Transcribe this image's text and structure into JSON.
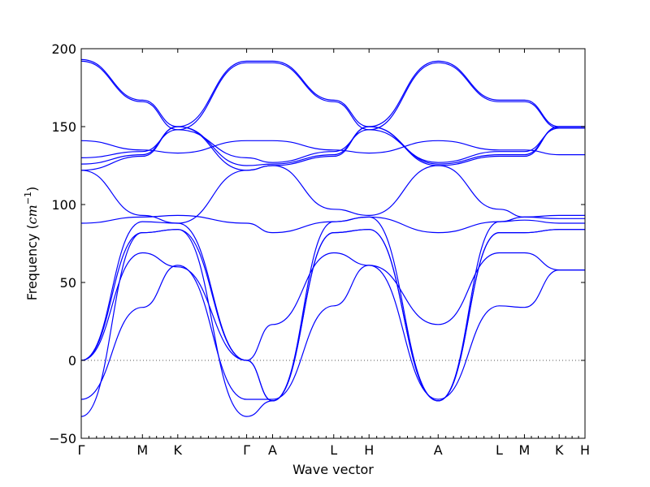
{
  "chart_data": {
    "type": "line",
    "title": "",
    "xlabel": "Wave vector",
    "ylabel": "Frequency",
    "ylabel_unit": "cm",
    "ylabel_unit_exponent": "−1",
    "ylim": [
      -50,
      200
    ],
    "yticks": [
      -50,
      0,
      50,
      100,
      150,
      200
    ],
    "xticks": [
      "Γ",
      "M",
      "K",
      "Γ",
      "A",
      "L",
      "H",
      "A",
      "L",
      "M",
      "K",
      "H"
    ],
    "x": [
      0,
      0.2571,
      0.4057,
      0.6952,
      0.8043,
      1.0613,
      1.2097,
      1.5002,
      1.7571,
      1.8628,
      2.0089,
      2.1174
    ],
    "zero_line": true,
    "colors": {
      "bands": "#0000ff",
      "zero_line": "#555555"
    },
    "series": [
      {
        "values": [
          193,
          167,
          150,
          192,
          192,
          167,
          150,
          192,
          167,
          167,
          150,
          150
        ]
      },
      {
        "values": [
          192,
          166,
          148,
          191,
          191,
          166,
          148,
          191,
          166,
          166,
          149,
          149
        ]
      },
      {
        "values": [
          141,
          135,
          133,
          141,
          141,
          135,
          133,
          141,
          135,
          135,
          132,
          132
        ]
      },
      {
        "values": [
          130,
          134,
          148,
          130,
          127,
          134,
          148,
          127,
          134,
          134,
          149,
          149
        ]
      },
      {
        "values": [
          126,
          132,
          150,
          125,
          126,
          132,
          150,
          126,
          132,
          132,
          150,
          150
        ]
      },
      {
        "values": [
          122,
          131,
          150,
          122,
          125,
          131,
          150,
          125,
          131,
          131,
          150,
          150
        ]
      },
      {
        "values": [
          122,
          93,
          88,
          122,
          125,
          97,
          93,
          125,
          97,
          92,
          91,
          91
        ]
      },
      {
        "values": [
          88,
          92,
          93,
          88,
          82,
          89,
          92,
          82,
          89,
          92,
          93,
          93
        ]
      },
      {
        "values": [
          0,
          89,
          88,
          0,
          -26,
          89,
          92,
          -26,
          89,
          90,
          88,
          88
        ]
      },
      {
        "values": [
          0,
          82,
          84,
          0,
          -26,
          82,
          84,
          -26,
          82,
          82,
          84,
          84
        ]
      },
      {
        "values": [
          0,
          69,
          60,
          0,
          23,
          69,
          61,
          23,
          69,
          69,
          58,
          58
        ]
      },
      {
        "values": [
          -25,
          34,
          61,
          -25,
          -25,
          35,
          61,
          -25,
          35,
          34,
          58,
          58
        ]
      },
      {
        "values": [
          -36,
          82,
          84,
          -36,
          -26,
          82,
          84,
          -26,
          82,
          82,
          84,
          84
        ]
      }
    ]
  }
}
